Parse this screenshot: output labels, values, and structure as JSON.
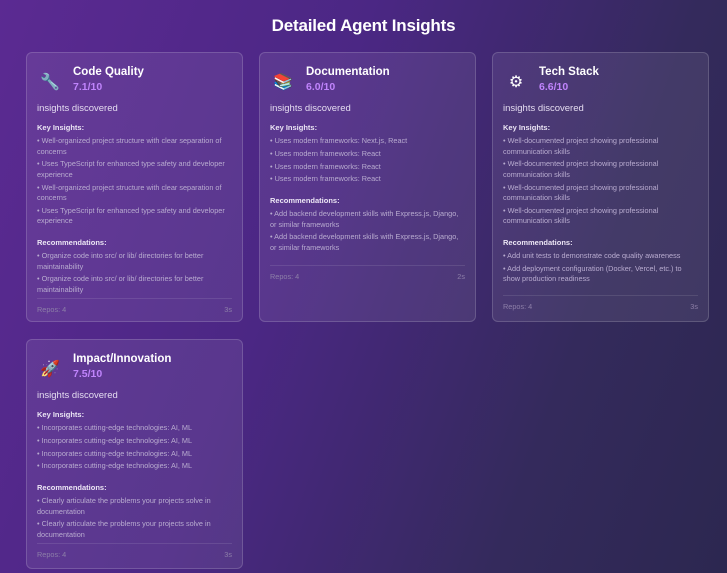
{
  "page": {
    "title": "Detailed Agent Insights"
  },
  "cards": [
    {
      "icon": "wrench-icon",
      "glyph": "🔧",
      "title": "Code Quality",
      "score": "7.1/10",
      "discovered": "insights discovered",
      "insights_label": "Key Insights:",
      "insights": [
        "• Well-organized project structure with clear separation of concerns",
        "• Uses TypeScript for enhanced type safety and developer experience",
        "• Well-organized project structure with clear separation of concerns",
        "• Uses TypeScript for enhanced type safety and developer experience"
      ],
      "rec_label": "Recommendations:",
      "recommendations": [
        "• Organize code into src/ or lib/ directories for better maintainability",
        "• Organize code into src/ or lib/ directories for better maintainability"
      ],
      "repos": "Repos: 4",
      "time": "3s"
    },
    {
      "icon": "books-icon",
      "glyph": "📚",
      "title": "Documentation",
      "score": "6.0/10",
      "discovered": "insights discovered",
      "insights_label": "Key Insights:",
      "insights": [
        "• Uses modern frameworks: Next.js, React",
        "• Uses modern frameworks: React",
        "• Uses modern frameworks: React",
        "• Uses modern frameworks: React"
      ],
      "rec_label": "Recommendations:",
      "recommendations": [
        "• Add backend development skills with Express.js, Django, or similar frameworks",
        "• Add backend development skills with Express.js, Django, or similar frameworks"
      ],
      "repos": "Repos: 4",
      "time": "2s"
    },
    {
      "icon": "gear-icon",
      "glyph": "⚙",
      "title": "Tech Stack",
      "score": "6.6/10",
      "discovered": "insights discovered",
      "insights_label": "Key Insights:",
      "insights": [
        "• Well-documented project showing professional communication skills",
        "• Well-documented project showing professional communication skills",
        "• Well-documented project showing professional communication skills",
        "• Well-documented project showing professional communication skills"
      ],
      "rec_label": "Recommendations:",
      "recommendations": [
        "• Add unit tests to demonstrate code quality awareness",
        "• Add deployment configuration (Docker, Vercel, etc.) to show production readiness"
      ],
      "repos": "Repos: 4",
      "time": "3s"
    },
    {
      "icon": "rocket-icon",
      "glyph": "🚀",
      "title": "Impact/Innovation",
      "score": "7.5/10",
      "discovered": "insights discovered",
      "insights_label": "Key Insights:",
      "insights": [
        "• Incorporates cutting-edge technologies: AI, ML",
        "• Incorporates cutting-edge technologies: AI, ML",
        "• Incorporates cutting-edge technologies: AI, ML",
        "• Incorporates cutting-edge technologies: AI, ML"
      ],
      "rec_label": "Recommendations:",
      "recommendations": [
        "• Clearly articulate the problems your projects solve in documentation",
        "• Clearly articulate the problems your projects solve in documentation"
      ],
      "repos": "Repos: 4",
      "time": "3s"
    }
  ],
  "colors": {
    "score": "#c084fc",
    "background_start": "#5b2a92",
    "background_end": "#2c2750"
  }
}
